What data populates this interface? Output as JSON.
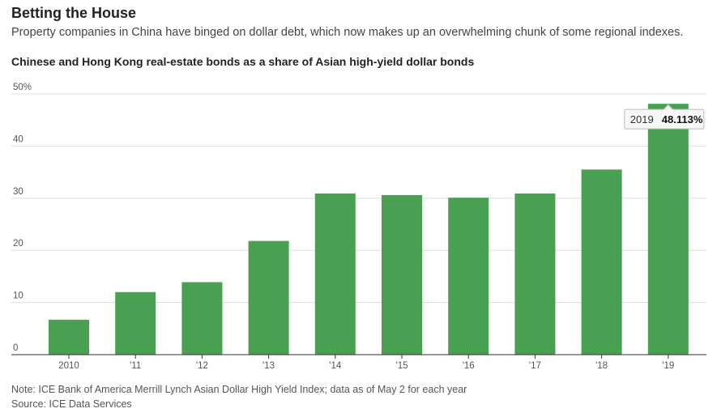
{
  "header": {
    "title": "Betting the House",
    "subtitle": "Property companies in China have binged on dollar debt, which now makes up an overwhelming chunk of some regional indexes."
  },
  "footer": {
    "note": "Note: ICE Bank of America Merrill Lynch Asian Dollar High Yield Index; data as of May 2 for each year",
    "source": "Source: ICE Data Services"
  },
  "colors": {
    "bar": "#4aa052",
    "grid": "#dddddd",
    "axis": "#333333"
  },
  "chart_data": {
    "type": "bar",
    "title": "Chinese and Hong Kong real-estate bonds as a share of Asian high-yield dollar bonds",
    "categories": [
      "2010",
      "'11",
      "'12",
      "'13",
      "'14",
      "'15",
      "'16",
      "'17",
      "'18",
      "'19"
    ],
    "values": [
      6.7,
      12.0,
      13.9,
      21.8,
      30.9,
      30.6,
      30.1,
      30.9,
      35.5,
      48.113
    ],
    "ylim": [
      0,
      50
    ],
    "yticks": [
      0,
      10,
      20,
      30,
      40,
      50
    ],
    "ytick_labels": [
      "0",
      "10",
      "20",
      "30",
      "40",
      "50%"
    ],
    "grid": true,
    "tooltip": {
      "year": "2019",
      "value": "48.113%"
    }
  }
}
